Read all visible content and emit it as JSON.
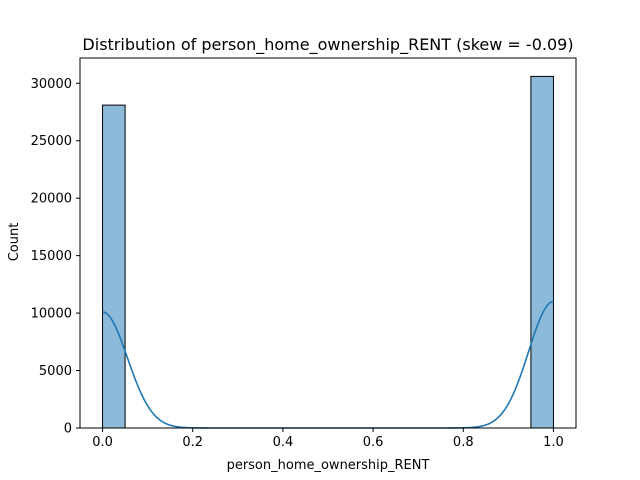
{
  "chart_data": {
    "type": "bar",
    "title": "Distribution of person_home_ownership_RENT (skew = -0.09)",
    "xlabel": "person_home_ownership_RENT",
    "ylabel": "Count",
    "xlim": [
      -0.05,
      1.05
    ],
    "ylim": [
      0,
      32200
    ],
    "xticks": [
      0.0,
      0.2,
      0.4,
      0.6,
      0.8,
      1.0
    ],
    "xtick_labels": [
      "0.0",
      "0.2",
      "0.4",
      "0.6",
      "0.8",
      "1.0"
    ],
    "yticks": [
      0,
      5000,
      10000,
      15000,
      20000,
      25000,
      30000
    ],
    "ytick_labels": [
      "0",
      "5000",
      "10000",
      "15000",
      "20000",
      "25000",
      "30000"
    ],
    "bins": [
      {
        "x0": 0.0,
        "x1": 0.05,
        "count": 28100
      },
      {
        "x0": 0.95,
        "x1": 1.0,
        "count": 30600
      }
    ],
    "kde": {
      "left_peak": {
        "x": 0.0,
        "y": 10100
      },
      "right_peak": {
        "x": 1.0,
        "y": 11000
      }
    },
    "grid": false,
    "colors": {
      "bar_fill": "#8ebad9",
      "kde_line": "#1f77b4"
    }
  }
}
